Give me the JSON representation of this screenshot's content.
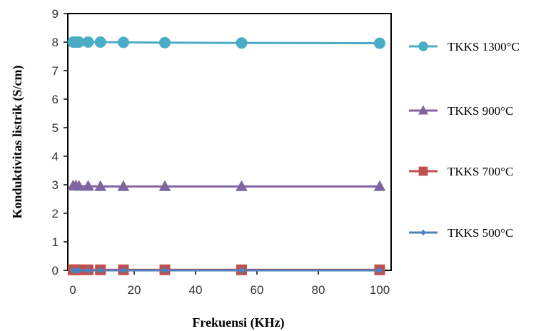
{
  "chart_data": {
    "type": "line",
    "xlabel": "Frekuensi (KHz)",
    "ylabel": "Konduktivitas listrik (S/cm)",
    "xlim": [
      0,
      100
    ],
    "ylim": [
      0,
      9
    ],
    "xticks": [
      0,
      20,
      40,
      60,
      80,
      100
    ],
    "yticks": [
      0,
      1,
      2,
      3,
      4,
      5,
      6,
      7,
      8,
      9
    ],
    "x": [
      0.1,
      1,
      2,
      5,
      9,
      16.5,
      30,
      55,
      100
    ],
    "grid": false,
    "legend_position": "right",
    "series": [
      {
        "name": "TKKS 1300°C",
        "values": [
          8.0,
          8.0,
          8.0,
          8.0,
          8.0,
          7.99,
          7.98,
          7.97,
          7.96
        ],
        "color": "#4bacc6",
        "marker": "circle"
      },
      {
        "name": "TKKS 900°C",
        "values": [
          2.96,
          2.96,
          2.95,
          2.95,
          2.94,
          2.94,
          2.94,
          2.94,
          2.94
        ],
        "color": "#8064a2",
        "marker": "triangle"
      },
      {
        "name": "TKKS 700°C",
        "values": [
          0.02,
          0.02,
          0.02,
          0.02,
          0.02,
          0.02,
          0.02,
          0.02,
          0.02
        ],
        "color": "#c0504d",
        "marker": "square"
      },
      {
        "name": "TKKS 500°C",
        "values": [
          0.0,
          0.0,
          0.0,
          0.0,
          0.0,
          0.0,
          0.0,
          0.0,
          0.0
        ],
        "color": "#4f81bd",
        "marker": "diamond"
      }
    ]
  }
}
